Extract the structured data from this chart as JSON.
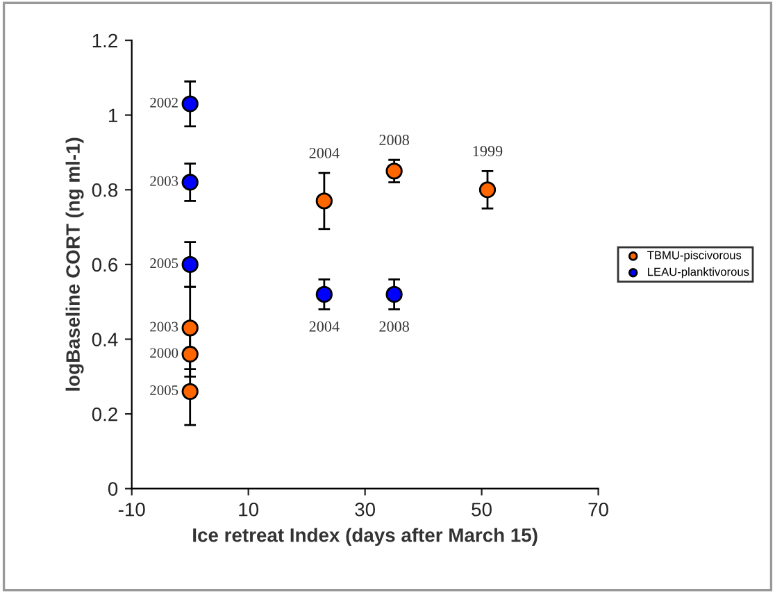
{
  "chart_data": {
    "type": "scatter",
    "xlabel": "Ice retreat Index (days after March 15)",
    "ylabel": "logBaseline CORT (ng ml-1)",
    "xlim": [
      -10,
      70
    ],
    "xticks": [
      -10,
      10,
      30,
      50,
      70
    ],
    "ylim": [
      0,
      1.2
    ],
    "yticks": [
      0,
      0.2,
      0.4,
      0.6,
      0.8,
      1,
      1.2
    ],
    "grid": false,
    "legend": "right",
    "marker": "circle",
    "series": [
      {
        "name": "TBMU-piscivorous",
        "color": "#ff6600",
        "x": [
          0,
          0,
          0,
          23,
          35,
          51
        ],
        "values": [
          0.43,
          0.36,
          0.26,
          0.77,
          0.85,
          0.8
        ],
        "errors": [
          0.11,
          0.06,
          0.09,
          0.075,
          0.03,
          0.05
        ]
      },
      {
        "name": "LEAU-planktivorous",
        "color": "#0000ff",
        "x": [
          0,
          0,
          0,
          23,
          35
        ],
        "values": [
          1.03,
          0.82,
          0.6,
          0.52,
          0.52
        ],
        "errors": [
          0.06,
          0.05,
          0.06,
          0.04,
          0.04
        ]
      }
    ],
    "annotations": [
      {
        "text": "2003",
        "x": 0,
        "y": 0.43
      },
      {
        "text": "2000",
        "x": 0,
        "y": 0.36
      },
      {
        "text": "2005",
        "x": 0,
        "y": 0.26
      },
      {
        "text": "2004",
        "x": 23,
        "y": 0.77
      },
      {
        "text": "2008",
        "x": 35,
        "y": 0.85
      },
      {
        "text": "1999",
        "x": 51,
        "y": 0.8
      },
      {
        "text": "2002",
        "x": 0,
        "y": 1.03
      },
      {
        "text": "2003",
        "x": 0,
        "y": 0.82
      },
      {
        "text": "2005",
        "x": 0,
        "y": 0.6
      },
      {
        "text": "2004",
        "x": 23,
        "y": 0.52
      },
      {
        "text": "2008",
        "x": 35,
        "y": 0.52
      }
    ]
  }
}
